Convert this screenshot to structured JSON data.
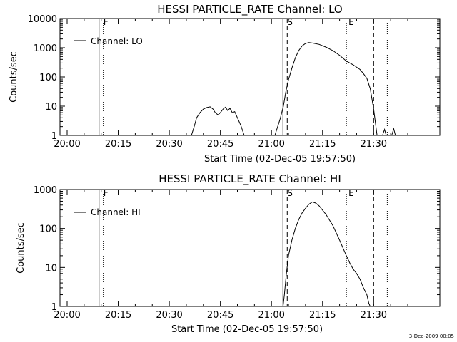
{
  "footer_stamp": "3-Dec-2009 00:05",
  "chart_data": [
    {
      "type": "line",
      "title": "HESSI PARTICLE_RATE Channel: LO",
      "xlabel": "Start Time (02-Dec-05 19:57:50)",
      "ylabel": "Counts/sec",
      "x_unit": "minutes since 20:00",
      "x_tick_labels": [
        "20:00",
        "20:15",
        "20:30",
        "20:45",
        "21:00",
        "21:15",
        "21:30"
      ],
      "y_tick_labels": [
        "1",
        "10",
        "100",
        "1000",
        "10000"
      ],
      "y_scale": "log",
      "ylim": [
        1,
        10000
      ],
      "legend": {
        "label": "Channel: LO",
        "placement": "top-left"
      },
      "markers": [
        {
          "label": "F",
          "time": "20:10",
          "style": "solid+dotted"
        },
        {
          "label": "S",
          "time": "21:04",
          "style": "solid+dashed"
        },
        {
          "label": "E",
          "time": "21:22",
          "style": "dotted"
        },
        {
          "label": "",
          "time": "21:30",
          "style": "dashed"
        },
        {
          "label": "",
          "time": "21:34",
          "style": "dotted"
        }
      ],
      "series": [
        {
          "segments": [
            [
              [
                36.5,
                1
              ],
              [
                37.3,
                2
              ],
              [
                38,
                4
              ],
              [
                39,
                6
              ],
              [
                40,
                8
              ],
              [
                41,
                9
              ],
              [
                42,
                9.5
              ],
              [
                42.8,
                8
              ],
              [
                43.5,
                6
              ],
              [
                44.3,
                5
              ],
              [
                45,
                6
              ],
              [
                45.8,
                8
              ],
              [
                46.5,
                9.2
              ],
              [
                47.2,
                7
              ],
              [
                47.8,
                8.5
              ],
              [
                48.5,
                6
              ],
              [
                49.2,
                6.5
              ],
              [
                50,
                4
              ],
              [
                51,
                2.2
              ],
              [
                52,
                1
              ]
            ],
            [
              [
                61,
                1
              ],
              [
                61.7,
                1.8
              ],
              [
                62.5,
                3.5
              ],
              [
                63.5,
                10
              ],
              [
                64.2,
                30
              ],
              [
                65,
                80
              ],
              [
                66,
                200
              ],
              [
                67,
                450
              ],
              [
                68,
                800
              ],
              [
                69,
                1150
              ],
              [
                70,
                1400
              ],
              [
                71,
                1500
              ],
              [
                72,
                1450
              ],
              [
                74,
                1300
              ],
              [
                76,
                1050
              ],
              [
                78,
                800
              ],
              [
                80,
                550
              ],
              [
                82,
                350
              ],
              [
                84,
                260
              ],
              [
                86,
                180
              ],
              [
                87,
                130
              ],
              [
                88,
                90
              ],
              [
                89,
                40
              ],
              [
                90,
                8
              ],
              [
                91,
                1
              ]
            ],
            [
              [
                92.6,
                1
              ],
              [
                93.2,
                1.6
              ],
              [
                93.7,
                1
              ]
            ],
            [
              [
                95.3,
                1
              ],
              [
                95.9,
                1.7
              ],
              [
                96.4,
                1
              ]
            ]
          ]
        }
      ]
    },
    {
      "type": "line",
      "title": "HESSI PARTICLE_RATE Channel: HI",
      "xlabel": "Start Time (02-Dec-05 19:57:50)",
      "ylabel": "Counts/sec",
      "x_unit": "minutes since 20:00",
      "x_tick_labels": [
        "20:00",
        "20:15",
        "20:30",
        "20:45",
        "21:00",
        "21:15",
        "21:30"
      ],
      "y_tick_labels": [
        "1",
        "10",
        "100",
        "1000"
      ],
      "y_scale": "log",
      "ylim": [
        1,
        1000
      ],
      "legend": {
        "label": "Channel: HI",
        "placement": "top-left"
      },
      "markers": [
        {
          "label": "F",
          "time": "20:10",
          "style": "solid+dotted"
        },
        {
          "label": "S",
          "time": "21:04",
          "style": "solid+dashed"
        },
        {
          "label": "E",
          "time": "21:22",
          "style": "dotted"
        },
        {
          "label": "",
          "time": "21:30",
          "style": "dashed"
        },
        {
          "label": "",
          "time": "21:34",
          "style": "dotted"
        }
      ],
      "series": [
        {
          "segments": [
            [
              [
                63.4,
                1
              ],
              [
                63.8,
                2
              ],
              [
                64.3,
                6
              ],
              [
                65,
                20
              ],
              [
                66,
                50
              ],
              [
                67,
                100
              ],
              [
                68,
                170
              ],
              [
                69,
                250
              ],
              [
                70,
                330
              ],
              [
                71,
                420
              ],
              [
                72,
                480
              ],
              [
                73,
                450
              ],
              [
                74,
                380
              ],
              [
                76,
                230
              ],
              [
                78,
                120
              ],
              [
                80,
                50
              ],
              [
                82,
                20
              ],
              [
                83,
                13
              ],
              [
                84,
                9
              ],
              [
                85,
                7
              ],
              [
                86,
                5
              ],
              [
                87,
                3
              ],
              [
                88,
                2
              ],
              [
                88.6,
                1.2
              ],
              [
                89,
                1
              ]
            ]
          ]
        }
      ]
    }
  ]
}
